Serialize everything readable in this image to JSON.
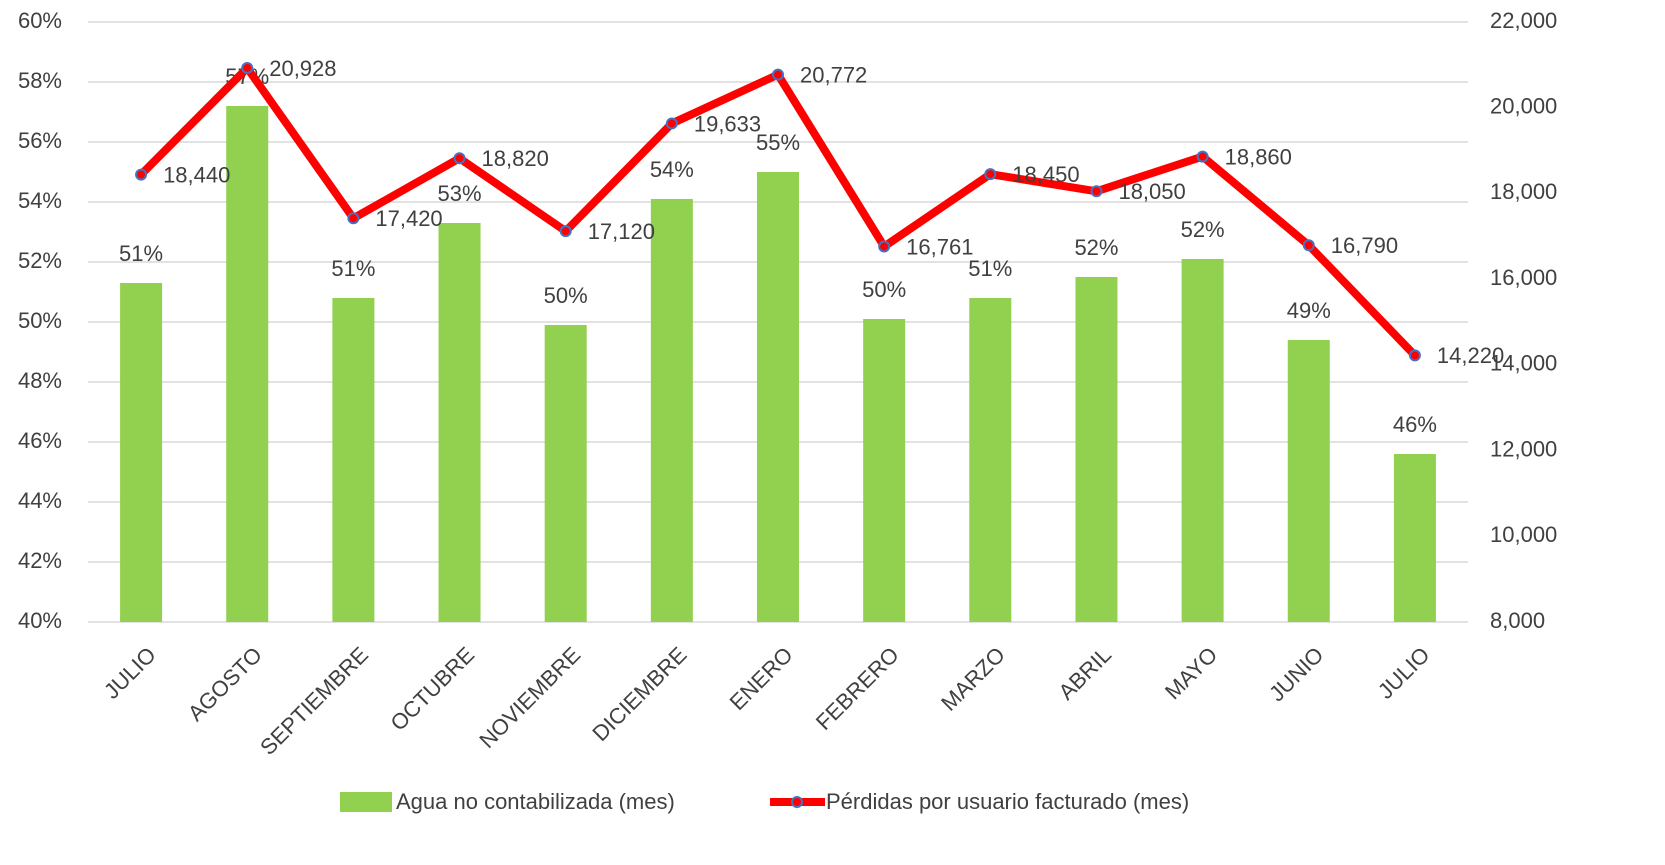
{
  "chart_data": {
    "type": "bar_line",
    "categories": [
      "JULIO",
      "AGOSTO",
      "SEPTIEMBRE",
      "OCTUBRE",
      "NOVIEMBRE",
      "DICIEMBRE",
      "ENERO",
      "FEBRERO",
      "MARZO",
      "ABRIL",
      "MAYO",
      "JUNIO",
      "JULIO"
    ],
    "series": [
      {
        "name": "Agua no contabilizada (mes)",
        "type": "bar",
        "color": "#92d050",
        "values": [
          51.3,
          57.2,
          50.8,
          53.3,
          49.9,
          54.1,
          55.0,
          50.1,
          50.8,
          51.5,
          52.1,
          49.4,
          45.6
        ],
        "value_labels": [
          "51%",
          "57%",
          "51%",
          "53%",
          "50%",
          "54%",
          "55%",
          "50%",
          "51%",
          "52%",
          "52%",
          "49%",
          "46%"
        ]
      },
      {
        "name": "Pérdidas por usuario facturado (mes)",
        "type": "line",
        "axis": "y2",
        "color": "#ff0000",
        "marker_color": "#4472c4",
        "values": [
          18440,
          20928,
          17420,
          18820,
          17120,
          19633,
          20772,
          16761,
          18450,
          18050,
          18860,
          16790,
          14220
        ],
        "value_labels": [
          "18,440",
          "20,928",
          "17,420",
          "18,820",
          "17,120",
          "19,633",
          "20,772",
          "16,761",
          "18,450",
          "18,050",
          "18,860",
          "16,790",
          "14,220"
        ]
      }
    ],
    "ylim": [
      40,
      60
    ],
    "yticks": [
      {
        "value": 40,
        "label": "40%"
      },
      {
        "value": 42,
        "label": "42%"
      },
      {
        "value": 44,
        "label": "44%"
      },
      {
        "value": 46,
        "label": "46%"
      },
      {
        "value": 48,
        "label": "48%"
      },
      {
        "value": 50,
        "label": "50%"
      },
      {
        "value": 52,
        "label": "52%"
      },
      {
        "value": 54,
        "label": "54%"
      },
      {
        "value": 56,
        "label": "56%"
      },
      {
        "value": 58,
        "label": "58%"
      },
      {
        "value": 60,
        "label": "60%"
      }
    ],
    "y2lim": [
      8000,
      22000
    ],
    "y2ticks": [
      {
        "value": 8000,
        "label": "8,000"
      },
      {
        "value": 10000,
        "label": "10,000"
      },
      {
        "value": 12000,
        "label": "12,000"
      },
      {
        "value": 14000,
        "label": "14,000"
      },
      {
        "value": 16000,
        "label": "16,000"
      },
      {
        "value": 18000,
        "label": "18,000"
      },
      {
        "value": 20000,
        "label": "20,000"
      },
      {
        "value": 22000,
        "label": "22,000"
      }
    ],
    "grid": true,
    "legend": "bottom"
  }
}
